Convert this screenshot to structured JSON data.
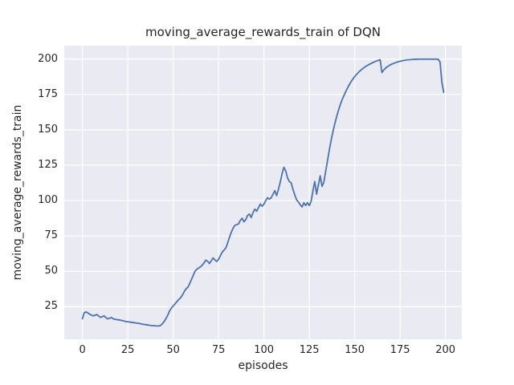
{
  "chart_data": {
    "type": "line",
    "title": "moving_average_rewards_train of DQN",
    "xlabel": "episodes",
    "ylabel": "moving_average_rewards_train",
    "xlim": [
      -10,
      209
    ],
    "ylim": [
      2,
      209.4
    ],
    "xticks": [
      0,
      25,
      50,
      75,
      100,
      125,
      150,
      175,
      200
    ],
    "yticks": [
      25,
      50,
      75,
      100,
      125,
      150,
      175,
      200
    ],
    "grid": true,
    "legend": false,
    "style": {
      "line_color": "#4c72b0",
      "plot_background": "#eaeaf2",
      "grid_color": "#ffffff",
      "text_color": "#262626",
      "figure_background": "#ffffff",
      "line_width": 1.8
    },
    "series": [
      {
        "name": "moving_average_rewards_train",
        "x": [
          0,
          1,
          2,
          3,
          4,
          5,
          6,
          7,
          8,
          9,
          10,
          11,
          12,
          13,
          14,
          15,
          16,
          17,
          18,
          19,
          20,
          21,
          22,
          23,
          24,
          25,
          26,
          27,
          28,
          29,
          30,
          31,
          32,
          33,
          34,
          35,
          36,
          37,
          38,
          39,
          40,
          41,
          42,
          43,
          44,
          45,
          46,
          47,
          48,
          49,
          50,
          51,
          52,
          53,
          54,
          55,
          56,
          57,
          58,
          59,
          60,
          61,
          62,
          63,
          64,
          65,
          66,
          67,
          68,
          69,
          70,
          71,
          72,
          73,
          74,
          75,
          76,
          77,
          78,
          79,
          80,
          81,
          82,
          83,
          84,
          85,
          86,
          87,
          88,
          89,
          90,
          91,
          92,
          93,
          94,
          95,
          96,
          97,
          98,
          99,
          100,
          101,
          102,
          103,
          104,
          105,
          106,
          107,
          108,
          109,
          110,
          111,
          112,
          113,
          114,
          115,
          116,
          117,
          118,
          119,
          120,
          121,
          122,
          123,
          124,
          125,
          126,
          127,
          128,
          129,
          130,
          131,
          132,
          133,
          134,
          135,
          136,
          137,
          138,
          139,
          140,
          141,
          142,
          143,
          144,
          145,
          146,
          147,
          148,
          149,
          150,
          151,
          152,
          153,
          154,
          155,
          156,
          157,
          158,
          159,
          160,
          161,
          162,
          163,
          164,
          165,
          166,
          167,
          168,
          169,
          170,
          171,
          172,
          173,
          174,
          175,
          176,
          177,
          178,
          179,
          180,
          181,
          182,
          183,
          184,
          185,
          186,
          187,
          188,
          189,
          190,
          191,
          192,
          193,
          194,
          195,
          196,
          197,
          198,
          199
        ],
        "y": [
          16.5,
          20.8,
          21.3,
          20.6,
          19.8,
          19.0,
          18.6,
          19.0,
          19.5,
          18.4,
          17.5,
          18.0,
          18.5,
          17.2,
          16.4,
          16.9,
          17.4,
          16.4,
          16.2,
          15.9,
          15.7,
          15.5,
          15.2,
          14.9,
          14.5,
          14.4,
          14.2,
          14.0,
          13.8,
          13.6,
          13.4,
          13.3,
          13.0,
          12.7,
          12.5,
          12.3,
          12.1,
          11.9,
          11.7,
          11.6,
          11.5,
          11.4,
          11.4,
          11.7,
          12.9,
          14.5,
          16.5,
          19.0,
          22.0,
          24.0,
          25.5,
          27.0,
          28.5,
          30.0,
          31.2,
          33.0,
          35.5,
          37.5,
          38.6,
          41.0,
          44.0,
          47.0,
          50.0,
          51.5,
          52.3,
          53.2,
          54.3,
          56.0,
          58.0,
          57.0,
          55.5,
          57.5,
          59.5,
          58.0,
          57.0,
          58.5,
          61.0,
          63.5,
          65.0,
          66.5,
          70.0,
          74.0,
          77.5,
          80.5,
          82.5,
          83.0,
          83.5,
          86.0,
          87.5,
          85.0,
          86.5,
          89.5,
          90.5,
          88.0,
          91.5,
          94.0,
          92.5,
          95.0,
          97.5,
          96.0,
          97.5,
          100.0,
          102.0,
          101.0,
          102.0,
          104.5,
          107.0,
          103.5,
          108.0,
          113.0,
          119.0,
          123.5,
          121.0,
          116.0,
          113.5,
          112.5,
          108.0,
          104.0,
          100.5,
          99.0,
          97.0,
          95.5,
          98.5,
          96.5,
          98.5,
          96.5,
          99.5,
          107.0,
          113.5,
          104.5,
          111.0,
          117.5,
          110.0,
          113.0,
          120.5,
          128.0,
          135.5,
          142.5,
          148.5,
          154.0,
          159.0,
          163.5,
          167.5,
          171.0,
          174.0,
          176.8,
          179.4,
          181.8,
          184.0,
          185.9,
          187.6,
          189.1,
          190.5,
          191.7,
          192.8,
          193.8,
          194.7,
          195.5,
          196.2,
          196.9,
          197.5,
          198.1,
          198.6,
          199.1,
          199.5,
          190.5,
          192.2,
          193.6,
          194.6,
          195.4,
          196.1,
          196.7,
          197.2,
          197.7,
          198.1,
          198.4,
          198.7,
          199.0,
          199.2,
          199.4,
          199.5,
          199.6,
          199.7,
          199.8,
          199.8,
          199.9,
          199.9,
          199.9,
          199.9,
          199.9,
          199.9,
          199.9,
          199.9,
          199.9,
          199.9,
          199.9,
          199.8,
          198.0,
          184.0,
          176.5
        ]
      }
    ]
  }
}
